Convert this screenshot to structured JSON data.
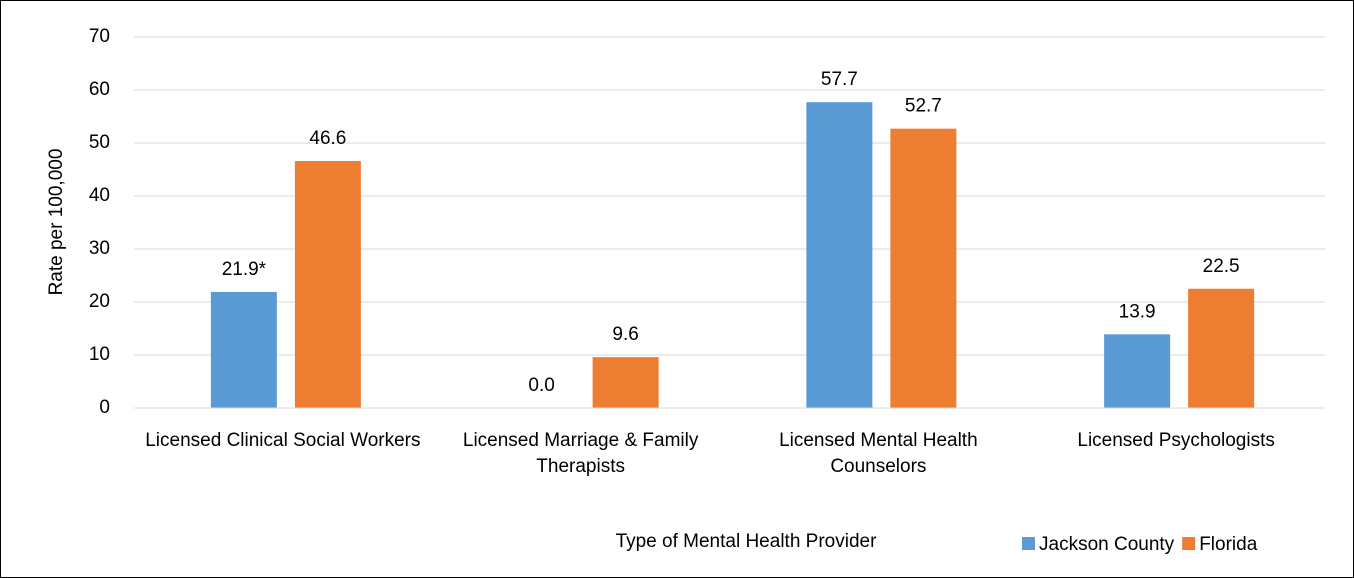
{
  "chart_data": {
    "type": "bar",
    "x_label": "Type of Mental Health Provider",
    "y_label": "Rate per 100,000",
    "categories": [
      "Licensed Clinical Social Workers",
      "Licensed Marriage & Family Therapists",
      "Licensed Mental Health Counselors",
      "Licensed Psychologists"
    ],
    "series": [
      {
        "name": "Jackson County",
        "color": "#5b9bd5",
        "values": [
          21.9,
          0,
          57.7,
          13.9
        ],
        "value_labels": [
          "21.9*",
          "0.0",
          "57.7",
          "13.9"
        ]
      },
      {
        "name": "Florida",
        "color": "#ed7d31",
        "values": [
          46.6,
          9.6,
          52.7,
          22.5
        ],
        "value_labels": [
          "46.6",
          "9.6",
          "52.7",
          "22.5"
        ]
      }
    ],
    "ylim": [
      0,
      70
    ],
    "yticks": [
      0,
      10,
      20,
      30,
      40,
      50,
      60,
      70
    ],
    "grid": true,
    "legend": "bottom-right"
  }
}
